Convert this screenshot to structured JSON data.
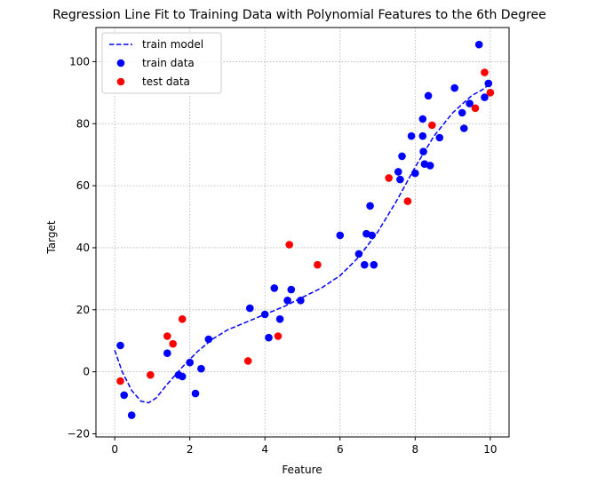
{
  "chart_data": {
    "type": "scatter",
    "title": "Regression Line Fit to Training Data with Polynomial Features to the 6th Degree",
    "xlabel": "Feature",
    "ylabel": "Target",
    "xlim": [
      -0.5,
      10.5
    ],
    "ylim": [
      -21,
      111
    ],
    "xticks": [
      0,
      2,
      4,
      6,
      8,
      10
    ],
    "yticks": [
      -20,
      0,
      20,
      40,
      60,
      80,
      100
    ],
    "grid": true,
    "legend_position": "top-left",
    "series": [
      {
        "name": "train model",
        "kind": "line",
        "style": "dashed",
        "color": "#0000ff",
        "points": [
          [
            0,
            7
          ],
          [
            0.2,
            0
          ],
          [
            0.45,
            -6
          ],
          [
            0.7,
            -9.5
          ],
          [
            0.9,
            -10
          ],
          [
            1.1,
            -8.5
          ],
          [
            1.4,
            -4
          ],
          [
            1.8,
            1.5
          ],
          [
            2.2,
            6.5
          ],
          [
            2.6,
            10.5
          ],
          [
            3.0,
            13.5
          ],
          [
            3.5,
            16
          ],
          [
            4.0,
            18.5
          ],
          [
            4.5,
            21
          ],
          [
            5.0,
            24
          ],
          [
            5.5,
            27
          ],
          [
            6.0,
            31
          ],
          [
            6.5,
            37
          ],
          [
            7.0,
            45
          ],
          [
            7.5,
            55
          ],
          [
            8.0,
            66
          ],
          [
            8.5,
            76
          ],
          [
            9.0,
            83.5
          ],
          [
            9.5,
            89
          ],
          [
            9.8,
            91
          ],
          [
            10.0,
            93
          ]
        ]
      },
      {
        "name": "train data",
        "kind": "points",
        "color": "#0000ff",
        "points": [
          [
            0.15,
            8.5
          ],
          [
            0.25,
            -7.5
          ],
          [
            0.45,
            -14
          ],
          [
            1.4,
            6
          ],
          [
            1.7,
            -1
          ],
          [
            1.8,
            -1.5
          ],
          [
            2.0,
            3
          ],
          [
            2.15,
            -7
          ],
          [
            2.3,
            1
          ],
          [
            2.5,
            10.5
          ],
          [
            3.6,
            20.5
          ],
          [
            4.0,
            18.5
          ],
          [
            4.1,
            11
          ],
          [
            4.25,
            27
          ],
          [
            4.4,
            17
          ],
          [
            4.6,
            23
          ],
          [
            4.7,
            26.5
          ],
          [
            4.95,
            23
          ],
          [
            6.0,
            44
          ],
          [
            6.5,
            38
          ],
          [
            6.65,
            34.5
          ],
          [
            6.7,
            44.5
          ],
          [
            6.8,
            53.5
          ],
          [
            6.85,
            44
          ],
          [
            6.9,
            34.5
          ],
          [
            7.55,
            64.5
          ],
          [
            7.6,
            62
          ],
          [
            7.65,
            69.5
          ],
          [
            7.9,
            76
          ],
          [
            8.0,
            64
          ],
          [
            8.2,
            81.5
          ],
          [
            8.2,
            76
          ],
          [
            8.22,
            71
          ],
          [
            8.25,
            67
          ],
          [
            8.35,
            89
          ],
          [
            8.4,
            66.5
          ],
          [
            8.65,
            75.5
          ],
          [
            9.05,
            91.5
          ],
          [
            9.25,
            83.5
          ],
          [
            9.3,
            78.5
          ],
          [
            9.45,
            86.5
          ],
          [
            9.7,
            105.5
          ],
          [
            9.85,
            88.5
          ],
          [
            9.95,
            93
          ]
        ]
      },
      {
        "name": "test data",
        "kind": "points",
        "color": "#ff0000",
        "points": [
          [
            0.15,
            -3
          ],
          [
            0.95,
            -1
          ],
          [
            1.4,
            11.5
          ],
          [
            1.55,
            9
          ],
          [
            1.8,
            17
          ],
          [
            3.55,
            3.5
          ],
          [
            4.35,
            11.5
          ],
          [
            4.65,
            41
          ],
          [
            5.4,
            34.5
          ],
          [
            7.3,
            62.5
          ],
          [
            7.8,
            55
          ],
          [
            8.45,
            79.5
          ],
          [
            9.6,
            85
          ],
          [
            9.85,
            96.5
          ],
          [
            10.0,
            90
          ]
        ]
      }
    ]
  }
}
